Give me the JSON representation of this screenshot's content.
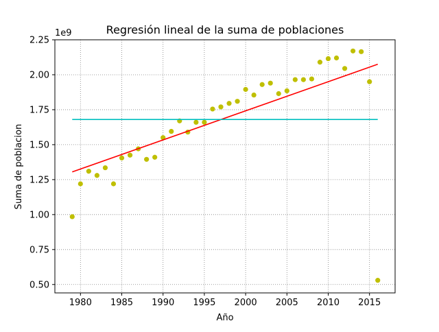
{
  "chart_data": {
    "type": "scatter",
    "title": "Regresión lineal de la suma de poblaciones",
    "xlabel": "Año",
    "ylabel": "Suma de poblacion",
    "offset_label": "1e9",
    "xlim": [
      1976.9,
      2018.1
    ],
    "ylim": [
      0.44,
      2.25
    ],
    "x_ticks": [
      1980,
      1985,
      1990,
      1995,
      2000,
      2005,
      2010,
      2015
    ],
    "x_tick_labels": [
      "1980",
      "1985",
      "1990",
      "1995",
      "2000",
      "2005",
      "2010",
      "2015"
    ],
    "y_ticks": [
      0.5,
      0.75,
      1.0,
      1.25,
      1.5,
      1.75,
      2.0,
      2.25
    ],
    "y_tick_labels": [
      "0.50",
      "0.75",
      "1.00",
      "1.25",
      "1.50",
      "1.75",
      "2.00",
      "2.25"
    ],
    "grid": true,
    "grid_style": "dotted",
    "series": [
      {
        "kind": "scatter",
        "color": "#bfbf00",
        "points": [
          [
            1979,
            0.985
          ],
          [
            1980,
            1.22
          ],
          [
            1981,
            1.31
          ],
          [
            1982,
            1.28
          ],
          [
            1983,
            1.335
          ],
          [
            1984,
            1.22
          ],
          [
            1985,
            1.405
          ],
          [
            1986,
            1.425
          ],
          [
            1987,
            1.47
          ],
          [
            1988,
            1.395
          ],
          [
            1989,
            1.41
          ],
          [
            1990,
            1.55
          ],
          [
            1991,
            1.595
          ],
          [
            1992,
            1.67
          ],
          [
            1993,
            1.59
          ],
          [
            1994,
            1.66
          ],
          [
            1995,
            1.66
          ],
          [
            1996,
            1.755
          ],
          [
            1997,
            1.77
          ],
          [
            1998,
            1.795
          ],
          [
            1999,
            1.81
          ],
          [
            2000,
            1.895
          ],
          [
            2001,
            1.855
          ],
          [
            2002,
            1.93
          ],
          [
            2003,
            1.94
          ],
          [
            2004,
            1.865
          ],
          [
            2005,
            1.885
          ],
          [
            2006,
            1.965
          ],
          [
            2007,
            1.965
          ],
          [
            2008,
            1.97
          ],
          [
            2009,
            2.09
          ],
          [
            2010,
            2.115
          ],
          [
            2011,
            2.12
          ],
          [
            2012,
            2.045
          ],
          [
            2013,
            2.17
          ],
          [
            2014,
            2.165
          ],
          [
            2015,
            1.95
          ],
          [
            2016,
            0.53
          ]
        ]
      },
      {
        "kind": "line",
        "color": "#ff0000",
        "points": [
          [
            1979,
            1.305
          ],
          [
            2016,
            2.075
          ]
        ]
      },
      {
        "kind": "line",
        "color": "#00bfbf",
        "points": [
          [
            1979,
            1.68
          ],
          [
            2016,
            1.68
          ]
        ]
      }
    ]
  }
}
